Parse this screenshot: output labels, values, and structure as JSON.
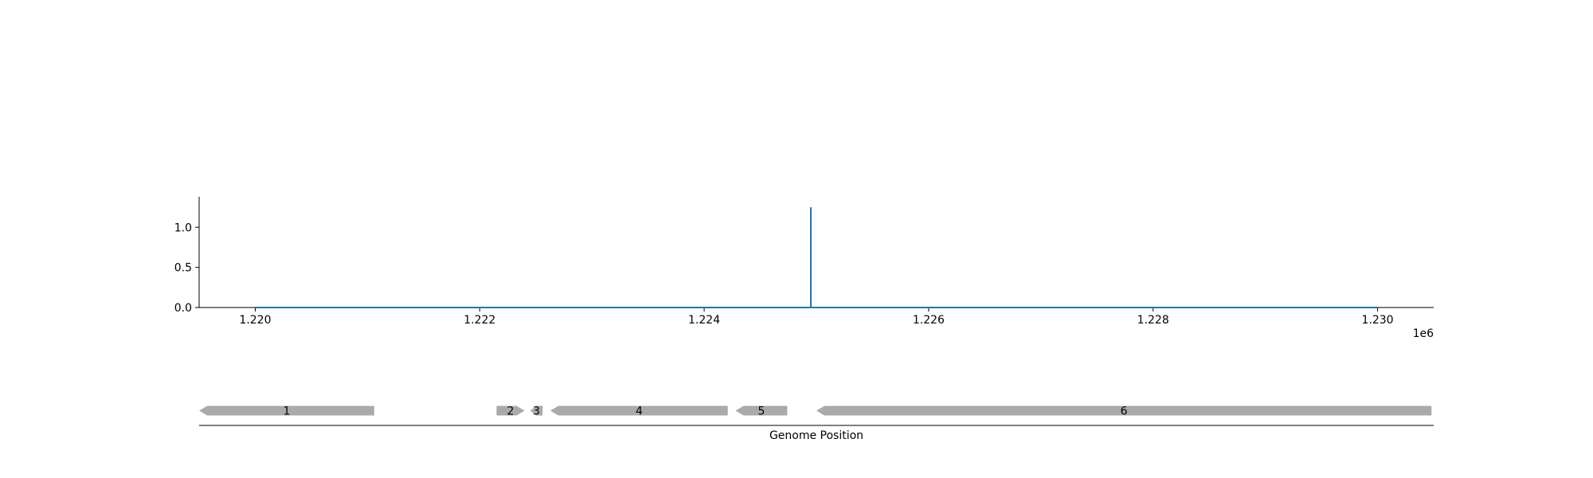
{
  "chart_data": {
    "type": "line",
    "x_range": [
      1219500,
      1230500
    ],
    "y_range": [
      0,
      1.38
    ],
    "x_ticks": [
      1220000,
      1222000,
      1224000,
      1226000,
      1228000,
      1230000
    ],
    "x_tick_labels": [
      "1.220",
      "1.222",
      "1.224",
      "1.226",
      "1.228",
      "1.230"
    ],
    "x_offset_label": "1e6",
    "y_ticks": [
      0.0,
      0.5,
      1.0
    ],
    "y_tick_labels": [
      "0.0",
      "0.5",
      "1.0"
    ],
    "xlabel": "Genome Position",
    "series": [
      {
        "color": "#1f77b4",
        "x": [
          1220000,
          1224950,
          1224950,
          1224950,
          1224950,
          1230000
        ],
        "y": [
          0,
          0,
          1.25,
          0.8,
          0,
          0
        ]
      }
    ],
    "genes": [
      {
        "label": "1",
        "start": 1219500,
        "end": 1221060,
        "strand": "-"
      },
      {
        "label": "2",
        "start": 1222150,
        "end": 1222400,
        "strand": "+"
      },
      {
        "label": "3",
        "start": 1222450,
        "end": 1222560,
        "strand": "-"
      },
      {
        "label": "4",
        "start": 1222630,
        "end": 1224210,
        "strand": "-"
      },
      {
        "label": "5",
        "start": 1224280,
        "end": 1224740,
        "strand": "-"
      },
      {
        "label": "6",
        "start": 1225000,
        "end": 1230480,
        "strand": "-"
      }
    ],
    "gene_color": "#aaaaaa",
    "grid": false
  }
}
